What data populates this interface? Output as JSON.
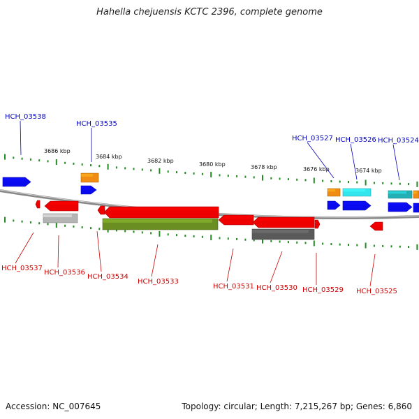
{
  "title": "Hahella chejuensis KCTC 2396, complete genome",
  "footer": {
    "accession": "Accession: NC_007645",
    "summary": "Topology: circular; Length: 7,215,267 bp; Genes: 6,860"
  },
  "ruler_labels": [
    "3686 kbp",
    "3684 kbp",
    "3682 kbp",
    "3680 kbp",
    "3678 kbp",
    "3676 kbp",
    "3674 kbp"
  ],
  "colors": {
    "forward_label": "#0000bb",
    "reverse_label": "#cc0000",
    "tick": "#228b22",
    "backbone": "#888888",
    "blue": "#0a0aee",
    "orange": "#f08c14",
    "cyan": "#33e6ee",
    "teal": "#22b0b4",
    "red": "#ee0000",
    "silver": "#b4b4b4",
    "olive": "#6b8e23",
    "dark_gray": "#5a5a5a"
  },
  "gene_labels": {
    "top": [
      "HCH_03538",
      "HCH_03535",
      "HCH_03527",
      "HCH_03526",
      "HCH_03524"
    ],
    "bottom": [
      "HCH_03537",
      "HCH_03536",
      "HCH_03534",
      "HCH_03533",
      "HCH_03531",
      "HCH_03530",
      "HCH_03529",
      "HCH_03525"
    ]
  }
}
